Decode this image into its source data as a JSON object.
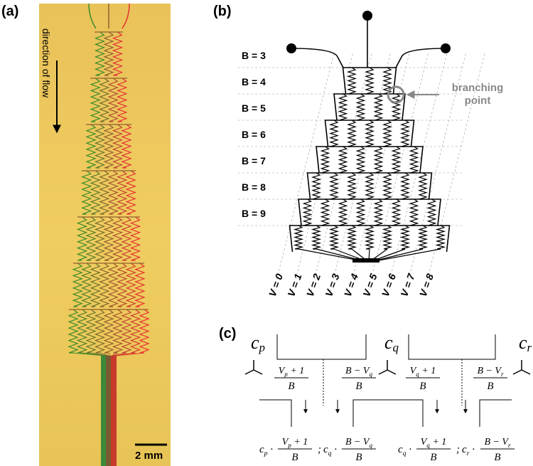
{
  "panel_a": {
    "label": "(a)",
    "flow_label": "direction of flow",
    "scale_label": "2 mm"
  },
  "panel_b": {
    "label": "(b)",
    "branch_labels": [
      "B = 3",
      "B = 4",
      "B = 5",
      "B = 6",
      "B = 7",
      "B = 8",
      "B = 9"
    ],
    "outlet_labels": [
      "V = 0",
      "V = 1",
      "V = 2",
      "V = 3",
      "V = 4",
      "V = 5",
      "V = 6",
      "V = 7",
      "V = 8"
    ],
    "annotation": [
      "branching",
      "point"
    ]
  },
  "panel_c": {
    "label": "(c)",
    "inlets": [
      [
        "c",
        "p"
      ],
      [
        "c",
        "q"
      ],
      [
        "c",
        "r"
      ]
    ],
    "fractions": [
      {
        "num": [
          "V",
          "p",
          " + 1"
        ],
        "den": "B"
      },
      {
        "num": [
          "B − V",
          "q"
        ],
        "den": "B"
      },
      {
        "num": [
          "V",
          "q",
          " + 1"
        ],
        "den": "B"
      },
      {
        "num": [
          "B − V",
          "r"
        ],
        "den": "B"
      }
    ],
    "products": [
      {
        "terms": [
          {
            "coef": [
              "c",
              "p",
              " ·"
            ],
            "num": [
              "V",
              "p",
              " + 1"
            ],
            "den": "B"
          },
          {
            "coef": [
              "c",
              "q",
              " ·"
            ],
            "num": [
              "B − V",
              "q"
            ],
            "den": "B"
          }
        ],
        "separator": ";"
      },
      {
        "terms": [
          {
            "coef": [
              "c",
              "q",
              " ·"
            ],
            "num": [
              "V",
              "q",
              " + 1"
            ],
            "den": "B"
          },
          {
            "coef": [
              "c",
              "r",
              " ·"
            ],
            "num": [
              "B − V",
              "r"
            ],
            "den": "B"
          }
        ],
        "separator": ";"
      }
    ]
  }
}
